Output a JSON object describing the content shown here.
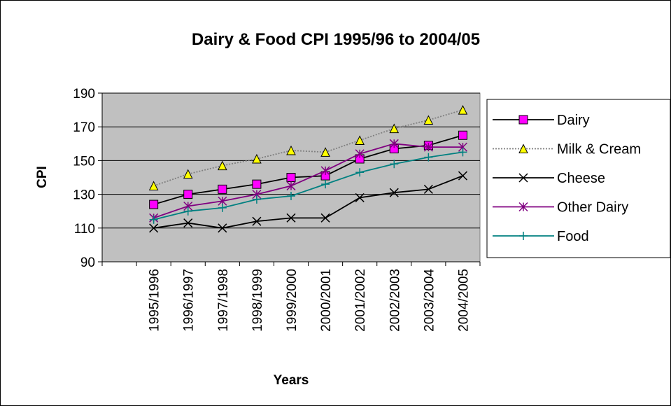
{
  "chart_data": {
    "type": "line",
    "title": "Dairy & Food CPI 1995/96 to 2004/05",
    "x_label": "Years",
    "y_label": "CPI",
    "categories": [
      null,
      "1995/1996",
      "1996/1997",
      "1997/1998",
      "1998/1999",
      "1999/2000",
      "2000/2001",
      "2001/2002",
      "2002/2003",
      "2003/2004",
      "2004/2005"
    ],
    "series": [
      {
        "name": "Dairy",
        "color": "#000000",
        "marker": "square",
        "marker_color": "#ff00ff",
        "values": [
          null,
          124,
          130,
          133,
          136,
          140,
          141,
          151,
          157,
          159,
          165
        ]
      },
      {
        "name": "Milk & Cream",
        "color": "#808080",
        "marker": "triangle",
        "marker_color": "#ffff00",
        "dashed": true,
        "values": [
          null,
          135,
          142,
          147,
          151,
          156,
          155,
          162,
          169,
          174,
          180
        ]
      },
      {
        "name": "Cheese",
        "color": "#000000",
        "marker": "x",
        "marker_color": "#000000",
        "values": [
          null,
          110,
          113,
          110,
          114,
          116,
          116,
          128,
          131,
          133,
          141
        ]
      },
      {
        "name": "Other Dairy",
        "color": "#800080",
        "marker": "star",
        "marker_color": "#800080",
        "values": [
          null,
          116,
          123,
          126,
          130,
          135,
          144,
          154,
          160,
          158,
          158
        ]
      },
      {
        "name": "Food",
        "color": "#008080",
        "marker": "plus",
        "marker_color": "#008080",
        "values": [
          null,
          115,
          120,
          122,
          127,
          129,
          136,
          143,
          148,
          152,
          155
        ]
      }
    ],
    "ylim": [
      90,
      190
    ],
    "yticks": [
      90,
      110,
      130,
      150,
      170,
      190
    ],
    "grid": true,
    "plot_background": "#c0c0c0",
    "legend_position": "right"
  }
}
